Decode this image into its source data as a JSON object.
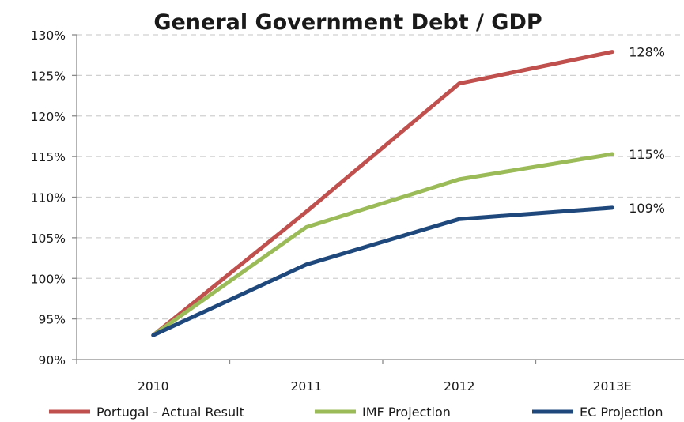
{
  "chart_data": {
    "type": "line",
    "title": "General Government Debt / GDP",
    "xlabel": "",
    "ylabel": "",
    "categories": [
      "2010",
      "2011",
      "2012",
      "2013E"
    ],
    "ylim": [
      90,
      130
    ],
    "yticks": [
      90,
      95,
      100,
      105,
      110,
      115,
      120,
      125,
      130
    ],
    "ytick_labels": [
      "90%",
      "95%",
      "100%",
      "105%",
      "110%",
      "115%",
      "120%",
      "125%",
      "130%"
    ],
    "grid": true,
    "legend": "bottom",
    "series": [
      {
        "name": "Portugal - Actual Result",
        "color": "#c0504d",
        "values": [
          93.0,
          108.2,
          124.0,
          127.9
        ],
        "end_label": "128%"
      },
      {
        "name": "IMF Projection",
        "color": "#9bbb59",
        "values": [
          93.0,
          106.3,
          112.2,
          115.3
        ],
        "end_label": "115%"
      },
      {
        "name": "EC Projection",
        "color": "#1f497d",
        "values": [
          93.0,
          101.7,
          107.3,
          108.7
        ],
        "end_label": "109%"
      }
    ]
  }
}
